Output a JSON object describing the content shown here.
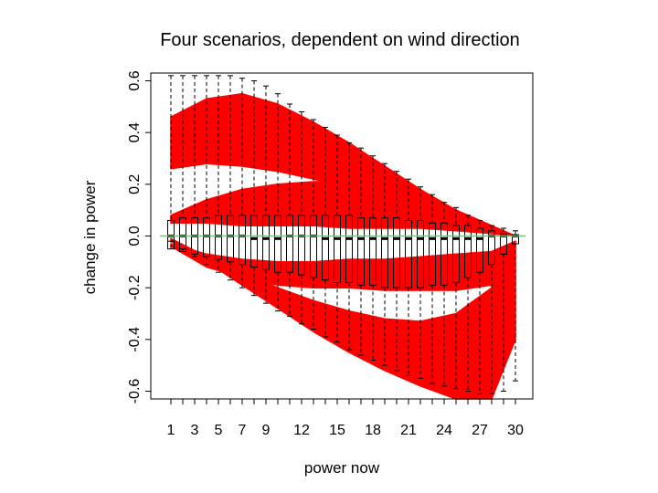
{
  "chart_data": {
    "type": "boxplot",
    "title": "Four scenarios, dependent on wind direction",
    "xlabel": "power now",
    "ylabel": "change in power",
    "categories": [
      1,
      2,
      3,
      4,
      5,
      6,
      7,
      8,
      9,
      10,
      11,
      12,
      13,
      14,
      15,
      16,
      17,
      18,
      19,
      20,
      21,
      22,
      23,
      24,
      25,
      26,
      27,
      28,
      29,
      30
    ],
    "x_tick_labels": [
      "1",
      "3",
      "5",
      "7",
      "9",
      "12",
      "15",
      "18",
      "21",
      "24",
      "27",
      "30"
    ],
    "y_tick_labels": [
      "-0.6",
      "-0.4",
      "-0.2",
      "0.0",
      "0.2",
      "0.4",
      "0.6"
    ],
    "ylim": [
      -0.63,
      0.63
    ],
    "grid": false,
    "reference_line": {
      "y": 0,
      "color": "#7fbf7f"
    },
    "band_color": "#ff0000",
    "box_color": "#000000",
    "boxes": {
      "whisker_high": [
        0.62,
        0.62,
        0.62,
        0.62,
        0.62,
        0.62,
        0.61,
        0.6,
        0.58,
        0.55,
        0.51,
        0.48,
        0.45,
        0.42,
        0.39,
        0.36,
        0.34,
        0.31,
        0.28,
        0.25,
        0.22,
        0.19,
        0.16,
        0.13,
        0.11,
        0.08,
        0.06,
        0.04,
        0.03,
        0.02
      ],
      "box_high": [
        0.06,
        0.07,
        0.07,
        0.07,
        0.08,
        0.08,
        0.08,
        0.08,
        0.08,
        0.08,
        0.08,
        0.08,
        0.08,
        0.08,
        0.08,
        0.08,
        0.07,
        0.07,
        0.07,
        0.07,
        0.06,
        0.06,
        0.05,
        0.05,
        0.04,
        0.04,
        0.03,
        0.02,
        0.01,
        0.005
      ],
      "median": [
        0.0,
        0.0,
        0.0,
        0.0,
        0.0,
        0.0,
        0.0,
        -0.01,
        -0.01,
        -0.01,
        0.0,
        0.0,
        0.0,
        -0.01,
        -0.01,
        -0.01,
        -0.01,
        -0.01,
        -0.01,
        -0.01,
        -0.01,
        -0.01,
        -0.01,
        -0.01,
        -0.01,
        -0.01,
        -0.01,
        0.0,
        0.0,
        0.0
      ],
      "box_low": [
        -0.05,
        -0.06,
        -0.07,
        -0.08,
        -0.09,
        -0.1,
        -0.11,
        -0.12,
        -0.13,
        -0.14,
        -0.14,
        -0.15,
        -0.16,
        -0.17,
        -0.18,
        -0.18,
        -0.19,
        -0.19,
        -0.2,
        -0.2,
        -0.2,
        -0.2,
        -0.19,
        -0.19,
        -0.18,
        -0.16,
        -0.14,
        -0.11,
        -0.07,
        -0.03
      ],
      "whisker_low": [
        -0.02,
        -0.05,
        -0.08,
        -0.11,
        -0.14,
        -0.17,
        -0.2,
        -0.23,
        -0.26,
        -0.29,
        -0.31,
        -0.34,
        -0.36,
        -0.39,
        -0.41,
        -0.44,
        -0.46,
        -0.48,
        -0.5,
        -0.52,
        -0.54,
        -0.55,
        -0.57,
        -0.58,
        -0.59,
        -0.6,
        -0.61,
        -0.61,
        -0.6,
        -0.56
      ]
    },
    "scenarios": [
      {
        "x": [
          1,
          4,
          7,
          10,
          13,
          16,
          19,
          22,
          25,
          28,
          30
        ],
        "upper": [
          0.46,
          0.53,
          0.55,
          0.51,
          0.44,
          0.36,
          0.27,
          0.18,
          0.1,
          0.04,
          0.0
        ],
        "lower": [
          0.26,
          0.28,
          0.27,
          0.25,
          0.22,
          0.19,
          0.15,
          0.11,
          0.07,
          0.03,
          0.0
        ]
      },
      {
        "x": [
          1,
          4,
          7,
          10,
          13,
          16,
          19,
          22,
          25,
          28,
          30
        ],
        "upper": [
          0.08,
          0.14,
          0.18,
          0.2,
          0.21,
          0.21,
          0.2,
          0.16,
          0.1,
          0.04,
          0.0
        ],
        "lower": [
          0.05,
          0.05,
          0.04,
          0.04,
          0.04,
          0.03,
          0.03,
          0.03,
          0.02,
          0.01,
          0.0
        ]
      },
      {
        "x": [
          1,
          4,
          7,
          10,
          13,
          16,
          19,
          22,
          25,
          28,
          30
        ],
        "upper": [
          -0.03,
          -0.07,
          -0.09,
          -0.1,
          -0.1,
          -0.09,
          -0.09,
          -0.08,
          -0.07,
          -0.06,
          -0.02
        ],
        "lower": [
          -0.04,
          -0.12,
          -0.16,
          -0.19,
          -0.2,
          -0.2,
          -0.21,
          -0.21,
          -0.21,
          -0.19,
          -0.02
        ]
      },
      {
        "x": [
          1,
          4,
          7,
          10,
          13,
          16,
          19,
          22,
          25,
          28,
          30
        ],
        "upper": [
          -0.01,
          -0.08,
          -0.14,
          -0.2,
          -0.25,
          -0.29,
          -0.32,
          -0.33,
          -0.3,
          -0.2,
          -0.02
        ],
        "lower": [
          -0.02,
          -0.1,
          -0.19,
          -0.28,
          -0.37,
          -0.45,
          -0.52,
          -0.58,
          -0.63,
          -0.63,
          -0.4
        ]
      }
    ]
  }
}
